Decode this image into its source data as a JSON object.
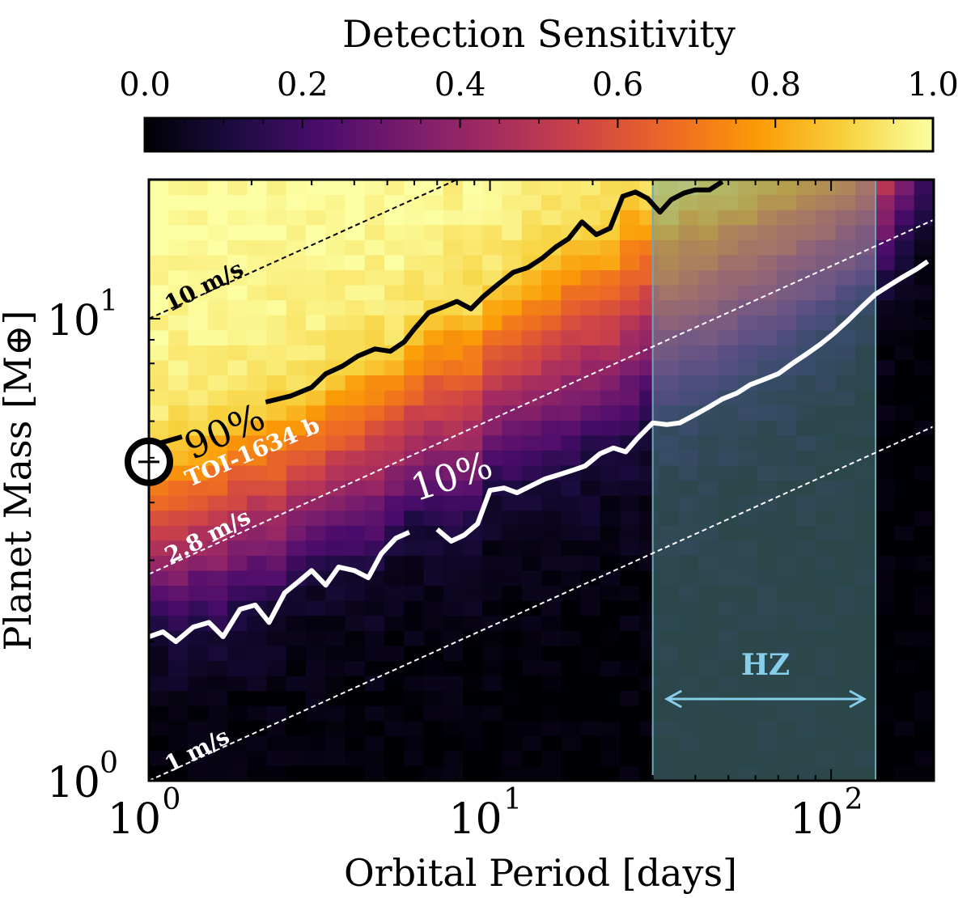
{
  "chart_data": {
    "type": "heatmap",
    "title": "",
    "colorbar": {
      "label": "Detection Sensitivity",
      "range": [
        0,
        1
      ],
      "ticks": [
        0.0,
        0.2,
        0.4,
        0.6,
        0.8,
        1.0
      ],
      "tick_labels": [
        "0.0",
        "0.2",
        "0.4",
        "0.6",
        "0.8",
        "1.0"
      ],
      "colormap": "inferno",
      "colormap_stops": [
        "#000004",
        "#1b0c41",
        "#4a0c6b",
        "#781c6d",
        "#a52c60",
        "#cf4446",
        "#ed6925",
        "#fb9b06",
        "#f7d13d",
        "#fcffa4"
      ],
      "position": "top"
    },
    "xlabel": "Orbital Period [days]",
    "ylabel": "Planet Mass [M⊕]",
    "xscale": "log",
    "yscale": "log",
    "xlim": [
      1,
      200
    ],
    "ylim": [
      1,
      20
    ],
    "x_ticks": [
      {
        "base": "10",
        "exp": "0",
        "value": 1
      },
      {
        "base": "10",
        "exp": "1",
        "value": 10
      },
      {
        "base": "10",
        "exp": "2",
        "value": 100
      }
    ],
    "y_ticks": [
      {
        "base": "10",
        "exp": "0",
        "value": 1
      },
      {
        "base": "10",
        "exp": "1",
        "value": 10
      }
    ],
    "grid_size": {
      "nx": 40,
      "ny": 40
    },
    "sensitivity_note": "probability of detection per (period, mass) cell, 0 = black, 1 = pale yellow",
    "contours": [
      {
        "name": "90%",
        "level": 0.9,
        "color": "#000000",
        "label": "90%",
        "points": [
          [
            1.0,
            5.3
          ],
          [
            1.1,
            5.4
          ],
          [
            1.25,
            5.55
          ],
          [
            1.4,
            5.75
          ],
          [
            1.6,
            6.0
          ],
          [
            1.8,
            6.3
          ],
          [
            2.2,
            6.6
          ],
          [
            2.6,
            6.8
          ],
          [
            3.0,
            7.1
          ],
          [
            3.3,
            7.6
          ],
          [
            3.7,
            7.9
          ],
          [
            4.1,
            8.3
          ],
          [
            4.6,
            8.6
          ],
          [
            5.1,
            8.5
          ],
          [
            5.6,
            8.9
          ],
          [
            6.0,
            9.5
          ],
          [
            6.6,
            10.3
          ],
          [
            7.3,
            10.6
          ],
          [
            8.0,
            10.9
          ],
          [
            8.8,
            10.5
          ],
          [
            9.6,
            11.2
          ],
          [
            10.6,
            11.9
          ],
          [
            11.7,
            12.6
          ],
          [
            12.9,
            12.9
          ],
          [
            14.2,
            13.5
          ],
          [
            15.6,
            14.3
          ],
          [
            17.0,
            14.9
          ],
          [
            18.6,
            16.2
          ],
          [
            20.5,
            15.2
          ],
          [
            22.5,
            15.7
          ],
          [
            24.5,
            18.4
          ],
          [
            26.7,
            18.8
          ],
          [
            29.0,
            18.2
          ],
          [
            31.5,
            17.0
          ],
          [
            34.0,
            18.1
          ],
          [
            37.0,
            18.7
          ],
          [
            40.0,
            19.0
          ],
          [
            44.0,
            19.0
          ],
          [
            48.0,
            19.8
          ]
        ]
      },
      {
        "name": "10%",
        "level": 0.1,
        "color": "#ffffff",
        "label": "10%",
        "points": [
          [
            1.0,
            2.05
          ],
          [
            1.1,
            2.1
          ],
          [
            1.2,
            2.0
          ],
          [
            1.35,
            2.15
          ],
          [
            1.5,
            2.2
          ],
          [
            1.65,
            2.05
          ],
          [
            1.85,
            2.35
          ],
          [
            2.05,
            2.4
          ],
          [
            2.25,
            2.2
          ],
          [
            2.5,
            2.55
          ],
          [
            2.75,
            2.7
          ],
          [
            3.0,
            2.85
          ],
          [
            3.3,
            2.65
          ],
          [
            3.6,
            2.9
          ],
          [
            4.0,
            2.85
          ],
          [
            4.4,
            2.75
          ],
          [
            4.8,
            3.1
          ],
          [
            5.3,
            3.35
          ],
          [
            5.8,
            3.45
          ],
          [
            6.4,
            3.6
          ],
          [
            7.0,
            3.5
          ],
          [
            7.7,
            3.3
          ],
          [
            8.4,
            3.4
          ],
          [
            9.2,
            3.6
          ],
          [
            10.0,
            4.25
          ],
          [
            11.0,
            4.3
          ],
          [
            12.0,
            4.2
          ],
          [
            13.2,
            4.35
          ],
          [
            14.5,
            4.5
          ],
          [
            16.0,
            4.6
          ],
          [
            17.5,
            4.7
          ],
          [
            19.0,
            4.8
          ],
          [
            21.0,
            5.1
          ],
          [
            23.0,
            5.25
          ],
          [
            25.0,
            5.15
          ],
          [
            27.0,
            5.5
          ],
          [
            30.0,
            5.95
          ],
          [
            33.0,
            5.9
          ],
          [
            36.0,
            5.95
          ],
          [
            40.0,
            6.2
          ],
          [
            44.0,
            6.45
          ],
          [
            48.0,
            6.7
          ],
          [
            53.0,
            6.9
          ],
          [
            58.0,
            7.2
          ],
          [
            64.0,
            7.4
          ],
          [
            70.0,
            7.6
          ],
          [
            77.0,
            8.0
          ],
          [
            85.0,
            8.4
          ],
          [
            93.0,
            8.8
          ],
          [
            102.0,
            9.3
          ],
          [
            112.0,
            9.9
          ],
          [
            123.0,
            10.6
          ],
          [
            135.0,
            11.3
          ],
          [
            148.0,
            11.8
          ],
          [
            162.0,
            12.3
          ],
          [
            178.0,
            12.8
          ],
          [
            192.0,
            13.3
          ]
        ]
      }
    ],
    "rv_lines": [
      {
        "label": "10 m/s",
        "K": 10,
        "color": "#000000",
        "mass_at_1day": 10.0
      },
      {
        "label": "2.8 m/s",
        "K": 2.8,
        "color": "#ffffff",
        "mass_at_1day": 2.8
      },
      {
        "label": "1 m/s",
        "K": 1,
        "color": "#ffffff",
        "mass_at_1day": 1.0
      }
    ],
    "rv_slope": 0.3333,
    "planet": {
      "label": "TOI-1634 b",
      "period": 1.0,
      "mass": 4.9,
      "symbol": "⊕"
    },
    "habitable_zone": {
      "label": "HZ",
      "period_range": [
        30,
        135
      ],
      "arrow_range": [
        33,
        125
      ],
      "fill_color": "#5f9ea0",
      "edge_color": "#6fa8b4",
      "label_color": "#87ceeb"
    }
  }
}
